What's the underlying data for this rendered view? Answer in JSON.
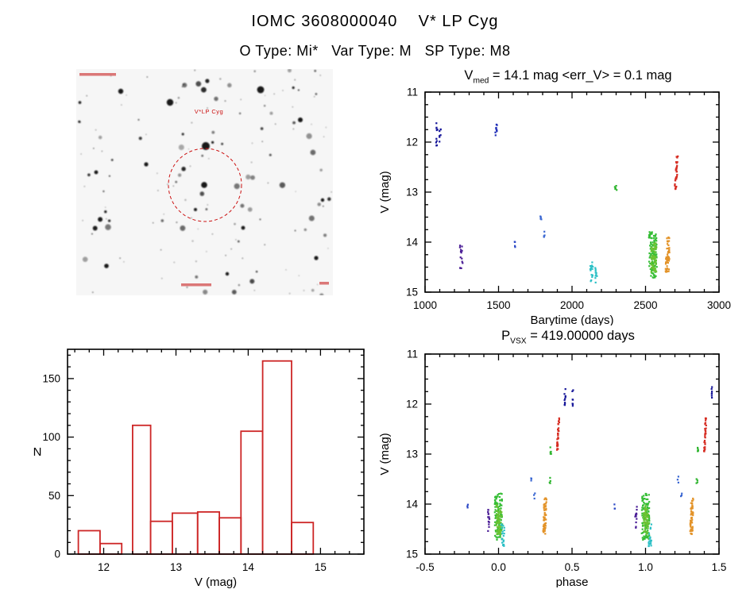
{
  "page": {
    "title": "IOMC 3608000040    V* LP Cyg",
    "subtitle": "O Type: Mi*   Var Type: M   SP Type: M8"
  },
  "finding_chart": {
    "target_label": "V*LP Cyg",
    "circle_color": "#cc1111"
  },
  "chart_data": [
    {
      "id": "lightcurve",
      "type": "scatter",
      "title": {
        "prefix": "V",
        "sub": "med",
        "rest": " = 14.1 mag <err_V> = 0.1 mag"
      },
      "xlabel": "Barytime (days)",
      "ylabel": "V (mag)",
      "xlim": [
        1000,
        3000
      ],
      "ylim": [
        11,
        15
      ],
      "y_inverted": true,
      "xticks": [
        1000,
        1500,
        2000,
        2500,
        3000
      ],
      "xtick_labels": [
        "1000",
        "1500",
        "2000",
        "2500",
        "3000"
      ],
      "yticks": [
        11,
        12,
        13,
        14,
        15
      ],
      "ytick_labels": [
        "11",
        "12",
        "13",
        "14",
        "15"
      ],
      "xminor": 100,
      "yminor": 0.25,
      "grid": false,
      "clusters": [
        {
          "x": 1078,
          "dx": 8,
          "v0": 11.62,
          "v1": 12.14,
          "n": 10,
          "color": "#161699"
        },
        {
          "x": 1103,
          "dx": 5,
          "v0": 11.68,
          "v1": 12.05,
          "n": 7,
          "color": "#161699"
        },
        {
          "x": 1248,
          "dx": 11,
          "v0": 14.05,
          "v1": 14.55,
          "n": 14,
          "color": "#4a1d96"
        },
        {
          "x": 1483,
          "dx": 7,
          "v0": 11.63,
          "v1": 11.88,
          "n": 10,
          "color": "#2230b8"
        },
        {
          "x": 1610,
          "dx": 4,
          "v0": 13.95,
          "v1": 14.1,
          "n": 4,
          "color": "#2c49c6"
        },
        {
          "x": 1788,
          "dx": 4,
          "v0": 13.45,
          "v1": 13.57,
          "n": 4,
          "color": "#3a67d2"
        },
        {
          "x": 1812,
          "dx": 4,
          "v0": 13.78,
          "v1": 13.9,
          "n": 4,
          "color": "#3a67d2"
        },
        {
          "x": 2133,
          "dx": 9,
          "v0": 14.4,
          "v1": 14.82,
          "n": 16,
          "color": "#2dc0c6"
        },
        {
          "x": 2163,
          "dx": 7,
          "v0": 14.45,
          "v1": 14.85,
          "n": 12,
          "color": "#2dc0c6"
        },
        {
          "x": 2298,
          "dx": 7,
          "v0": 12.85,
          "v1": 13.0,
          "n": 6,
          "color": "#2eb52e"
        },
        {
          "x": 2550,
          "dx": 27,
          "v0": 13.78,
          "v1": 14.72,
          "n": 115,
          "color": "#35bd35"
        },
        {
          "x": 2556,
          "dx": 18,
          "v0": 14.02,
          "v1": 14.6,
          "n": 60,
          "color": "#6cc232"
        },
        {
          "x": 2652,
          "dx": 12,
          "v0": 13.88,
          "v1": 14.6,
          "n": 58,
          "color": "#e39329",
          "slant": 8
        },
        {
          "x": 2710,
          "dx": 7,
          "v0": 12.28,
          "v1": 12.97,
          "n": 32,
          "color": "#d62c22",
          "slant": 14
        }
      ]
    },
    {
      "id": "histogram",
      "type": "bar",
      "xlabel": "V (mag)",
      "ylabel": "N",
      "ylabel_rotate": false,
      "xlim": [
        11.5,
        15.6
      ],
      "ylim": [
        0,
        175
      ],
      "y_inverted": false,
      "xticks": [
        12,
        13,
        14,
        15
      ],
      "xtick_labels": [
        "12",
        "13",
        "14",
        "15"
      ],
      "yticks": [
        0,
        50,
        100,
        150
      ],
      "ytick_labels": [
        "0",
        "50",
        "100",
        "150"
      ],
      "xminor": 0.2,
      "yminor": 10,
      "grid": false,
      "color": "#cd2626",
      "bars": [
        {
          "x0": 11.65,
          "x1": 11.95,
          "count": 20
        },
        {
          "x0": 11.95,
          "x1": 12.25,
          "count": 9
        },
        {
          "x0": 12.4,
          "x1": 12.65,
          "count": 110
        },
        {
          "x0": 12.65,
          "x1": 12.95,
          "count": 28
        },
        {
          "x0": 12.95,
          "x1": 13.3,
          "count": 35
        },
        {
          "x0": 13.3,
          "x1": 13.6,
          "count": 36
        },
        {
          "x0": 13.6,
          "x1": 13.9,
          "count": 31
        },
        {
          "x0": 13.9,
          "x1": 14.2,
          "count": 105
        },
        {
          "x0": 14.2,
          "x1": 14.6,
          "count": 165
        },
        {
          "x0": 14.6,
          "x1": 14.9,
          "count": 27
        }
      ]
    },
    {
      "id": "phase",
      "type": "scatter",
      "title": {
        "prefix": "P",
        "sub": "VSX",
        "rest": " = 419.00000 days"
      },
      "xlabel": "phase",
      "ylabel": "V (mag)",
      "xlim": [
        -0.5,
        1.5
      ],
      "ylim": [
        11,
        15
      ],
      "y_inverted": true,
      "xticks": [
        -0.5,
        0.0,
        0.5,
        1.0,
        1.5
      ],
      "xtick_labels": [
        "-0.5",
        "0.0",
        "0.5",
        "1.0",
        "1.5"
      ],
      "yticks": [
        11,
        12,
        13,
        14,
        15
      ],
      "ytick_labels": [
        "11",
        "12",
        "13",
        "14",
        "15"
      ],
      "xminor": 0.1,
      "yminor": 0.25,
      "grid": false,
      "clusters": [
        {
          "x": -0.21,
          "dx": 0.002,
          "v0": 14.0,
          "v1": 14.1,
          "n": 3,
          "color": "#2c49c6"
        },
        {
          "x": 0.79,
          "dx": 0.002,
          "v0": 14.0,
          "v1": 14.1,
          "n": 3,
          "color": "#2c49c6"
        },
        {
          "x": -0.065,
          "dx": 0.007,
          "v0": 14.05,
          "v1": 14.55,
          "n": 14,
          "color": "#4a1d96"
        },
        {
          "x": 0.935,
          "dx": 0.007,
          "v0": 14.05,
          "v1": 14.55,
          "n": 14,
          "color": "#4a1d96"
        },
        {
          "x": 0.0,
          "dx": 0.026,
          "v0": 13.78,
          "v1": 14.72,
          "n": 110,
          "color": "#35bd35"
        },
        {
          "x": 1.0,
          "dx": 0.026,
          "v0": 13.78,
          "v1": 14.72,
          "n": 110,
          "color": "#35bd35"
        },
        {
          "x": 0.004,
          "dx": 0.018,
          "v0": 14.02,
          "v1": 14.6,
          "n": 55,
          "color": "#6cc232"
        },
        {
          "x": 1.004,
          "dx": 0.018,
          "v0": 14.02,
          "v1": 14.6,
          "n": 55,
          "color": "#6cc232"
        },
        {
          "x": 0.03,
          "dx": 0.01,
          "v0": 14.4,
          "v1": 14.85,
          "n": 20,
          "color": "#2dc0c6"
        },
        {
          "x": 1.03,
          "dx": 0.01,
          "v0": 14.4,
          "v1": 14.85,
          "n": 20,
          "color": "#2dc0c6"
        },
        {
          "x": 0.22,
          "dx": 0.004,
          "v0": 13.45,
          "v1": 13.57,
          "n": 3,
          "color": "#3a67d2"
        },
        {
          "x": 1.22,
          "dx": 0.004,
          "v0": 13.45,
          "v1": 13.57,
          "n": 3,
          "color": "#3a67d2"
        },
        {
          "x": 0.245,
          "dx": 0.004,
          "v0": 13.78,
          "v1": 13.9,
          "n": 3,
          "color": "#3a67d2"
        },
        {
          "x": 1.245,
          "dx": 0.004,
          "v0": 13.78,
          "v1": 13.9,
          "n": 3,
          "color": "#3a67d2"
        },
        {
          "x": 0.315,
          "dx": 0.009,
          "v0": 13.88,
          "v1": 14.6,
          "n": 58,
          "color": "#e39329",
          "slant": 0.008
        },
        {
          "x": 1.315,
          "dx": 0.009,
          "v0": 13.88,
          "v1": 14.6,
          "n": 58,
          "color": "#e39329",
          "slant": 0.008
        },
        {
          "x": 0.35,
          "dx": 0.004,
          "v0": 13.45,
          "v1": 13.6,
          "n": 4,
          "color": "#2eb52e"
        },
        {
          "x": 1.35,
          "dx": 0.004,
          "v0": 13.45,
          "v1": 13.6,
          "n": 4,
          "color": "#2eb52e"
        },
        {
          "x": 0.355,
          "dx": 0.004,
          "v0": 12.85,
          "v1": 13.0,
          "n": 5,
          "color": "#2eb52e"
        },
        {
          "x": 1.355,
          "dx": 0.004,
          "v0": 12.85,
          "v1": 13.0,
          "n": 5,
          "color": "#2eb52e"
        },
        {
          "x": 0.405,
          "dx": 0.004,
          "v0": 12.28,
          "v1": 12.97,
          "n": 32,
          "color": "#d62c22",
          "slant": 0.012
        },
        {
          "x": 1.405,
          "dx": 0.004,
          "v0": 12.28,
          "v1": 12.97,
          "n": 32,
          "color": "#d62c22",
          "slant": 0.012
        },
        {
          "x": 0.452,
          "dx": 0.004,
          "v0": 11.62,
          "v1": 12.14,
          "n": 10,
          "color": "#161699"
        },
        {
          "x": 1.452,
          "dx": 0.004,
          "v0": 11.65,
          "v1": 11.95,
          "n": 7,
          "color": "#161699"
        },
        {
          "x": 0.505,
          "dx": 0.003,
          "v0": 11.68,
          "v1": 12.05,
          "n": 7,
          "color": "#161699"
        }
      ]
    }
  ]
}
